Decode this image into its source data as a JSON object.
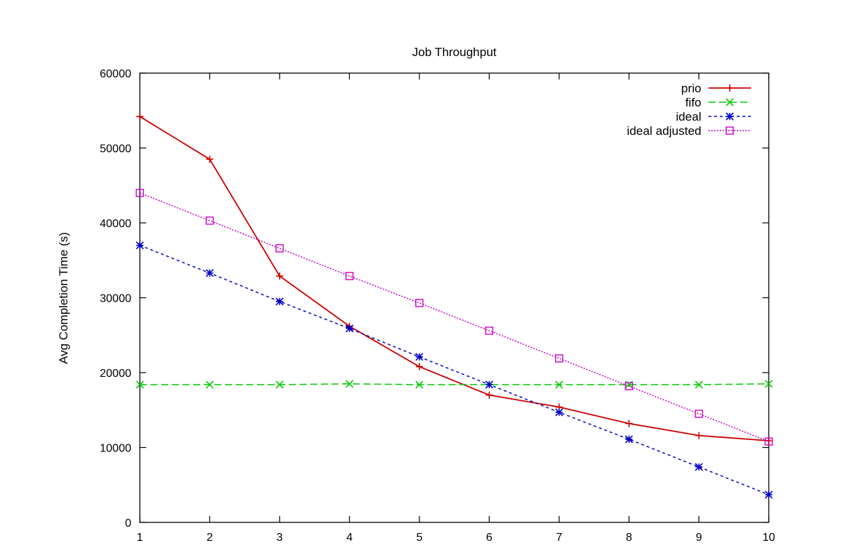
{
  "chart_data": {
    "type": "line",
    "title": "Job Throughput",
    "xlabel": "",
    "ylabel": "Avg Completion Time (s)",
    "xlim": [
      1,
      10
    ],
    "ylim": [
      0,
      60000
    ],
    "x_ticks": [
      "1",
      "2",
      "3",
      "4",
      "5",
      "6",
      "7",
      "8",
      "9",
      "10"
    ],
    "y_ticks": [
      "0",
      "10000",
      "20000",
      "30000",
      "40000",
      "50000",
      "60000"
    ],
    "grid": false,
    "legend_position": "top-right",
    "x": [
      1,
      2,
      3,
      4,
      5,
      6,
      7,
      8,
      9,
      10
    ],
    "series": [
      {
        "name": "prio",
        "color": "#cc0000",
        "marker": "plus",
        "dash": "solid",
        "values": [
          54200,
          48500,
          32900,
          26200,
          20800,
          17000,
          15400,
          13200,
          11600,
          10900
        ]
      },
      {
        "name": "fifo",
        "color": "#00cc00",
        "marker": "cross",
        "dash": "dashed",
        "values": [
          18400,
          18400,
          18400,
          18500,
          18400,
          18400,
          18400,
          18400,
          18400,
          18500
        ]
      },
      {
        "name": "ideal",
        "color": "#0000cc",
        "marker": "star",
        "dash": "dotted",
        "values": [
          37000,
          33300,
          29500,
          25900,
          22100,
          18400,
          14700,
          11100,
          7400,
          3700
        ]
      },
      {
        "name": "ideal adjusted",
        "color": "#cc00cc",
        "marker": "square",
        "dash": "dotted-fine",
        "values": [
          44000,
          40300,
          36600,
          32900,
          29300,
          25600,
          21900,
          18200,
          14500,
          10800
        ]
      }
    ]
  }
}
